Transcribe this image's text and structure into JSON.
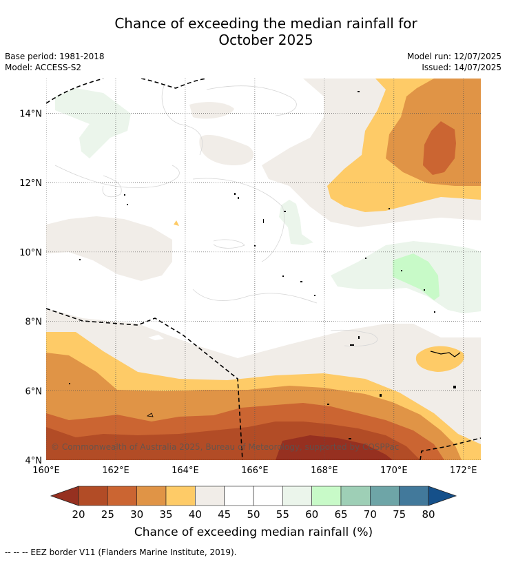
{
  "title": {
    "line1": "Chance of exceeding the median rainfall for",
    "line2": "October 2025"
  },
  "meta": {
    "base_period": "Base period: 1981-2018",
    "model": "Model: ACCESS-S2",
    "model_run": "Model run: 12/07/2025",
    "issued": "Issued: 14/07/2025"
  },
  "copyright": "© Commonwealth of Australia 2025, Bureau of Meteorology, supported by COSPPac",
  "footnote": "--  --  -- EEZ border V11 (Flanders Marine Institute, 2019).",
  "chart_data": {
    "type": "heatmap",
    "lat_ticks": [
      "14°N",
      "12°N",
      "10°N",
      "8°N",
      "6°N",
      "4°N"
    ],
    "lon_ticks": [
      "160°E",
      "162°E",
      "164°E",
      "166°E",
      "168°E",
      "170°E",
      "172°E"
    ],
    "lat_range": [
      4,
      15
    ],
    "lon_range": [
      160,
      172.5
    ],
    "colorbar": {
      "label": "Chance of exceeding median rainfall (%)",
      "ticks": [
        "20",
        "25",
        "30",
        "35",
        "40",
        "45",
        "50",
        "55",
        "60",
        "65",
        "70",
        "75",
        "80"
      ],
      "colors": [
        "#963020",
        "#b24c26",
        "#cb6532",
        "#e09446",
        "#fecb67",
        "#f1ede8",
        "#ffffff",
        "#ffffff",
        "#ebf5eb",
        "#c8fac8",
        "#9ecfb6",
        "#6ea5a7",
        "#42799b",
        "#15508a"
      ]
    },
    "colors": {
      "c20": "#963020",
      "c25": "#b24c26",
      "c30": "#cb6532",
      "c35": "#e09446",
      "c40": "#fecb67",
      "c45": "#f1ede8",
      "c55": "#ebf5eb",
      "c60": "#c8fac8"
    }
  }
}
